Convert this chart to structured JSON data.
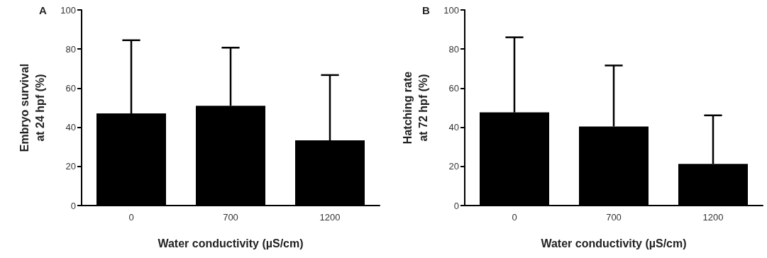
{
  "chart_data": [
    {
      "type": "bar",
      "title": "A",
      "xlabel": "Water conductivity (µS/cm)",
      "ylabel": "Embryo survival\nat 24 hpf (%)",
      "categories": [
        "0",
        "700",
        "1200"
      ],
      "color": "#000000",
      "values": [
        47.1,
        51.0,
        33.3
      ],
      "errors": [
        [
          47.1,
          84.5
        ],
        [
          51.0,
          80.7
        ],
        [
          33.3,
          66.7
        ]
      ],
      "ylim": [
        0,
        100
      ],
      "yticks": [
        0,
        20,
        40,
        60,
        80,
        100
      ],
      "grid": false
    },
    {
      "type": "bar",
      "title": "B",
      "xlabel": "Water conductivity (µS/cm)",
      "ylabel": "Hatching rate\nat 72 hpf (%)",
      "categories": [
        "0",
        "700",
        "1200"
      ],
      "color": "#000000",
      "values": [
        47.6,
        40.4,
        21.3
      ],
      "errors": [
        [
          47.6,
          86.0
        ],
        [
          40.4,
          71.6
        ],
        [
          21.3,
          46.1
        ]
      ],
      "ylim": [
        0,
        100
      ],
      "yticks": [
        0,
        20,
        40,
        60,
        80,
        100
      ],
      "grid": false
    }
  ]
}
